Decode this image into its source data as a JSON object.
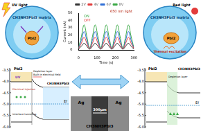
{
  "panels": {
    "uv_panel": {
      "light": "UV light",
      "matrix": "CH3NH3PbI3 matrix",
      "inclusion": "PbI2"
    },
    "red_panel": {
      "light": "Red light",
      "matrix": "CH3NH3PbI3 matrix",
      "inclusion": "PbI2",
      "process": "Thermal excitation"
    },
    "band_left": {
      "yticks": [
        "-3.5",
        "-4.0",
        "-4.5",
        "-5.0",
        "-5.5",
        "-6.0"
      ],
      "left_material": "PbI2",
      "right_material": "CH3NH3PbI3",
      "labels": [
        "UV",
        "Electrical injection",
        "Interface tunneling",
        "Depletion layer",
        "Built-in electrical field"
      ],
      "fermi": "Ef"
    },
    "band_right": {
      "yticks": [
        "-3.5",
        "-4.0",
        "-4.5",
        "-5.0",
        "-5.5",
        "-6.0"
      ],
      "left_material": "PbI2",
      "right_material": "CH3NH3PbI3",
      "labels": [
        "Depletion layer"
      ],
      "fermi": "Ef"
    },
    "photo": {
      "electrode_left": "Ag",
      "electrode_right": "Ag",
      "scale": "300μm",
      "film": "CH3NH3PbI3"
    }
  },
  "chart_data": {
    "type": "line",
    "x_label": "Time (s)",
    "y_label": "Current (nA)",
    "annotations": [
      "650 nm light",
      "ON",
      "OFF"
    ],
    "x": [
      0,
      15,
      30,
      45,
      60,
      75,
      90,
      105,
      120,
      135,
      150,
      165,
      180,
      195,
      210,
      225,
      240,
      255,
      270,
      285,
      300
    ],
    "xlim": [
      0,
      300
    ],
    "xticks": [
      0,
      100,
      200,
      300
    ],
    "ylim": [
      0,
      50
    ],
    "yticks": [
      0,
      10,
      20,
      30,
      40,
      50
    ],
    "legend": "top",
    "series": [
      {
        "name": "2V",
        "color": "#333333",
        "values": [
          1,
          5,
          9,
          5,
          1,
          5,
          9,
          5,
          1,
          5,
          9,
          5,
          1,
          5,
          9,
          5,
          1,
          5,
          9,
          5,
          1
        ]
      },
      {
        "name": "4V",
        "color": "#e23b3b",
        "values": [
          2,
          9,
          17,
          9,
          2,
          9,
          17,
          9,
          2,
          9,
          17,
          9,
          2,
          9,
          17,
          9,
          2,
          9,
          17,
          9,
          2
        ]
      },
      {
        "name": "6V",
        "color": "#2f6fd6",
        "values": [
          2,
          13,
          25,
          13,
          2,
          13,
          25,
          13,
          2,
          13,
          25,
          13,
          2,
          13,
          25,
          13,
          2,
          13,
          25,
          13,
          2
        ]
      },
      {
        "name": "8V",
        "color": "#3aa845",
        "values": [
          3,
          18,
          34,
          18,
          3,
          18,
          34,
          18,
          3,
          18,
          34,
          18,
          3,
          18,
          34,
          18,
          3,
          18,
          34,
          18,
          3
        ]
      }
    ]
  }
}
